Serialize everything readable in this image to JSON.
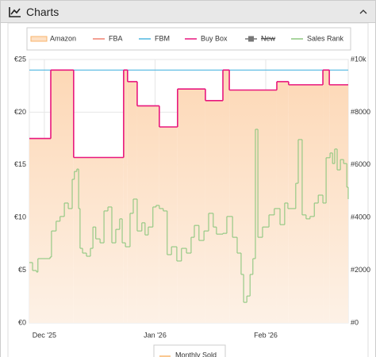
{
  "header": {
    "title": "Charts"
  },
  "chart_data": {
    "type": "step",
    "xlim": [
      -4.2,
      85.1
    ],
    "xticks": [
      {
        "value": 0,
        "label": "Dec '25"
      },
      {
        "value": 31,
        "label": "Jan '26"
      },
      {
        "value": 62,
        "label": "Feb '26"
      }
    ],
    "ylim": [
      0,
      25
    ],
    "yticks": [
      {
        "value": 0,
        "label": "€0"
      },
      {
        "value": 5,
        "label": "€5"
      },
      {
        "value": 10,
        "label": "€10"
      },
      {
        "value": 15,
        "label": "€15"
      },
      {
        "value": 20,
        "label": "€20"
      },
      {
        "value": 25,
        "label": "€25"
      }
    ],
    "y2lim": [
      0,
      10000
    ],
    "y2ticks": [
      {
        "value": 0,
        "label": "#0"
      },
      {
        "value": 2000,
        "label": "#2000"
      },
      {
        "value": 4000,
        "label": "#4000"
      },
      {
        "value": 6000,
        "label": "#6000"
      },
      {
        "value": 8000,
        "label": "#8000"
      },
      {
        "value": 10000,
        "label": "#10k"
      }
    ],
    "grid": true,
    "series": [
      {
        "name": "Amazon",
        "color": "#f9b56c",
        "style": "area",
        "x": [
          -4.2,
          1.8,
          8.2,
          22.2,
          23.3,
          26,
          32.2,
          37.3,
          45.1,
          50,
          51.8,
          65.1,
          68.4,
          78,
          79.8
        ],
        "values": [
          17.5,
          24,
          15.7,
          24,
          22.9,
          20.6,
          18.6,
          22.2,
          21.1,
          24,
          22.1,
          22.9,
          22.6,
          24,
          22.6
        ]
      },
      {
        "name": "FBA",
        "color": "#f08070",
        "style": "line",
        "x": [],
        "values": []
      },
      {
        "name": "FBM",
        "color": "#4fb7e0",
        "style": "line",
        "x": [
          -4.2
        ],
        "values": [
          24
        ]
      },
      {
        "name": "Buy Box",
        "color": "#e8177d",
        "style": "line",
        "x": [
          -4.2,
          1.8,
          8.2,
          22.2,
          23.3,
          26,
          32.2,
          37.3,
          45.1,
          50,
          51.8,
          65.1,
          68.4,
          78,
          79.8
        ],
        "values": [
          17.5,
          24,
          15.7,
          24,
          22.9,
          20.6,
          18.6,
          22.2,
          21.1,
          24,
          22.1,
          22.9,
          22.6,
          24,
          22.6
        ]
      },
      {
        "name": "New",
        "color": "#777777",
        "style": "line",
        "disabled": true,
        "x": [],
        "values": []
      },
      {
        "name": "Sales Rank",
        "color": "#8dc77f",
        "style": "line",
        "axis": "y2",
        "x": [
          -4.2,
          -3.3,
          -2.2,
          -1.8,
          1.6,
          2.0,
          3.3,
          4.4,
          5.6,
          6.7,
          7.8,
          8.4,
          9.1,
          9.6,
          10.0,
          10.7,
          11.8,
          12.9,
          13.6,
          14.4,
          15.6,
          16.7,
          17.8,
          18.9,
          20.0,
          21.1,
          21.8,
          22.7,
          24.0,
          24.9,
          26.0,
          27.3,
          28.2,
          29.1,
          30.4,
          31.3,
          32.2,
          33.3,
          34.4,
          35.6,
          37.1,
          38.4,
          39.8,
          41.1,
          42.0,
          43.3,
          44.7,
          46.0,
          47.3,
          48.2,
          50.0,
          51.1,
          52.7,
          54.0,
          55.1,
          55.8,
          56.7,
          57.6,
          58.4,
          59.1,
          59.8,
          61.1,
          62.9,
          64.4,
          66.0,
          67.3,
          68.2,
          70.4,
          71.1,
          72.2,
          73.3,
          74.4,
          75.6,
          76.7,
          78.0,
          78.9,
          80.0,
          80.7,
          81.3,
          82.0,
          82.9,
          83.8,
          84.7,
          85.1
        ],
        "values": [
          2290,
          1990,
          1930,
          2440,
          2500,
          3490,
          3860,
          4040,
          4550,
          4340,
          5450,
          5750,
          5840,
          4340,
          2830,
          2650,
          2530,
          2830,
          3640,
          3190,
          3040,
          4250,
          4400,
          3040,
          3550,
          3950,
          3040,
          2890,
          4160,
          4700,
          3490,
          3800,
          3340,
          3640,
          4400,
          4460,
          4340,
          4250,
          2590,
          2890,
          2350,
          2830,
          2650,
          3250,
          3700,
          3130,
          3490,
          4160,
          3640,
          3370,
          3400,
          4040,
          3250,
          2650,
          1840,
          780,
          1020,
          1840,
          2440,
          7350,
          3250,
          3640,
          4100,
          4340,
          3730,
          4550,
          4340,
          5300,
          6960,
          4100,
          3950,
          4040,
          4550,
          4850,
          4550,
          6270,
          6450,
          6050,
          6600,
          5810,
          6200,
          6050,
          5150,
          4700
        ]
      }
    ],
    "second_legend": {
      "name": "Monthly Sold",
      "color": "#f9b56c"
    }
  }
}
